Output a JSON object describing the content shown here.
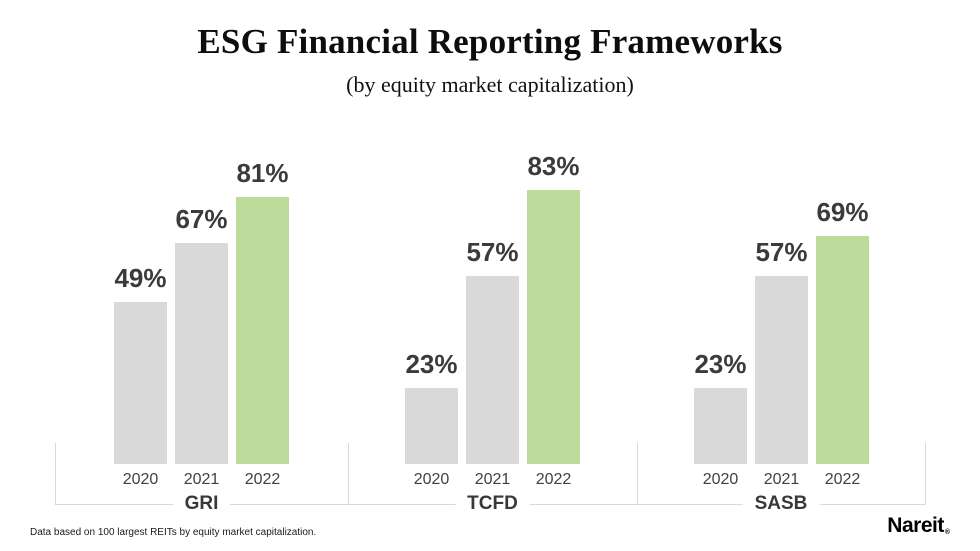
{
  "slide": {
    "title": "ESG Financial Reporting Frameworks",
    "subtitle": "(by equity market capitalization)",
    "footnote": "Data based on 100 largest REITs by equity market capitalization.",
    "logo": {
      "text": "Nareit",
      "mark": "®"
    }
  },
  "chart_data": {
    "type": "bar",
    "title": "ESG Financial Reporting Frameworks",
    "subtitle": "(by equity market capitalization)",
    "categories": [
      "GRI",
      "TCFD",
      "SASB"
    ],
    "series": [
      {
        "name": "2020",
        "color": "#d9d9d9",
        "values": [
          49,
          23,
          23
        ]
      },
      {
        "name": "2021",
        "color": "#d9d9d9",
        "values": [
          67,
          57,
          57
        ]
      },
      {
        "name": "2022",
        "color": "#bddb9b",
        "values": [
          81,
          83,
          69
        ]
      }
    ],
    "value_suffix": "%",
    "ylim": [
      0,
      100
    ],
    "grid": false,
    "legend": false,
    "data_labels": true,
    "axis_line_color": "#d9d9d9",
    "data_label_color": "#3b3b3b",
    "year_label_color": "#404040"
  }
}
